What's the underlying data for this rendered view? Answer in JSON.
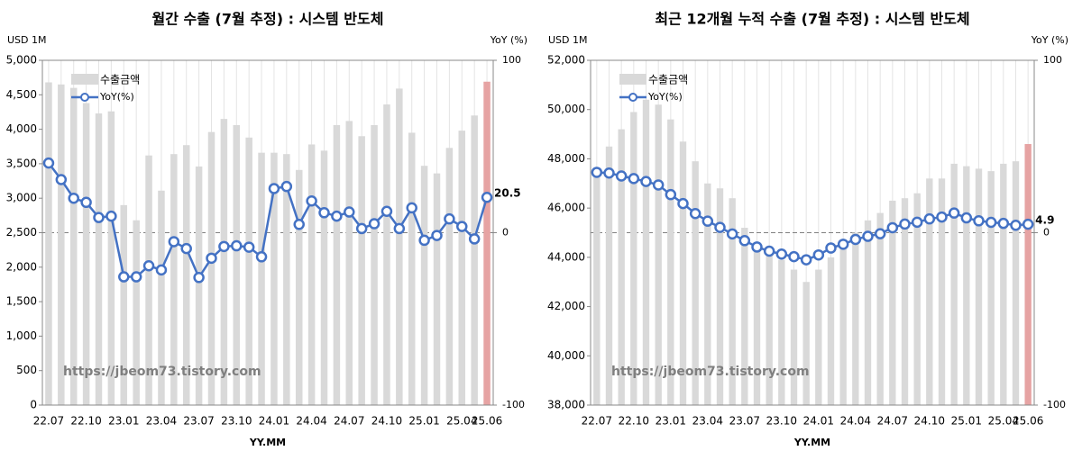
{
  "chart_data": [
    {
      "type": "bar_line",
      "title": "월간 수출 (7월 추정) : 시스템 반도체",
      "ylabel": "USD 1M",
      "y2label": "YoY (%)",
      "xlabel": "YY.MM",
      "watermark": "https://jbeom73.tistory.com",
      "categories": [
        "22.07",
        null,
        null,
        "22.10",
        null,
        null,
        "23.01",
        null,
        null,
        "23.04",
        null,
        null,
        "23.07",
        null,
        null,
        "23.10",
        null,
        null,
        "24.01",
        null,
        null,
        "24.04",
        null,
        null,
        "24.07",
        null,
        null,
        "24.10",
        null,
        null,
        "25.01",
        null,
        null,
        "25.04",
        null,
        "25.06"
      ],
      "series": [
        {
          "name": "수출금액",
          "color": "#d9d9d9",
          "highlight_color": "#e6a3a3",
          "values": [
            4680,
            4650,
            4600,
            4380,
            4230,
            4260,
            2900,
            2680,
            3620,
            3110,
            3640,
            3770,
            3460,
            3960,
            4150,
            4060,
            3880,
            3660,
            3660,
            3640,
            3410,
            3780,
            3690,
            4060,
            4120,
            3900,
            4060,
            4360,
            4590,
            3950,
            3470,
            3360,
            3730,
            3980,
            4200,
            4690
          ]
        },
        {
          "name": "YoY(%)",
          "color": "#4472c4",
          "axis": "y2",
          "values": [
            40.4,
            30.8,
            20,
            17.6,
            8.8,
            9.6,
            -25.6,
            -25.6,
            -19.2,
            -21.6,
            -5.2,
            -9.2,
            -26,
            -14.8,
            -8,
            -7.6,
            -8.4,
            -14,
            25.6,
            26.8,
            4.8,
            18.4,
            11.6,
            9.6,
            12,
            2.4,
            5.2,
            12.4,
            2.4,
            14.4,
            -4.4,
            -1.6,
            8,
            3.6,
            -3.6,
            20.5
          ]
        }
      ],
      "ylim": [
        0,
        5000
      ],
      "yticks": [
        0,
        500,
        {
          "value": 1000,
          "label": "1,000"
        },
        {
          "value": 1500,
          "label": "1,500"
        },
        {
          "value": 2000,
          "label": "2,000"
        },
        {
          "value": 2500,
          "label": "2,500"
        },
        {
          "value": 3000,
          "label": "3,000"
        },
        {
          "value": 3500,
          "label": "3,500"
        },
        {
          "value": 4000,
          "label": "4,000"
        },
        {
          "value": 4500,
          "label": "4,500"
        },
        {
          "value": 5000,
          "label": "5,000"
        }
      ],
      "y2lim": [
        -100,
        100
      ],
      "y2ticks": [
        -100,
        0,
        100
      ],
      "y2_zero_line": true,
      "xgrid": true,
      "label_last_point": true,
      "label_color": "#ff0000"
    },
    {
      "type": "bar_line",
      "title": "최근 12개월 누적 수출 (7월 추정) : 시스템 반도체",
      "ylabel": "USD 1M",
      "y2label": "YoY (%)",
      "xlabel": "YY.MM",
      "watermark": "https://jbeom73.tistory.com",
      "categories": [
        "22.07",
        null,
        null,
        "22.10",
        null,
        null,
        "23.01",
        null,
        null,
        "23.04",
        null,
        null,
        "23.07",
        null,
        null,
        "23.10",
        null,
        null,
        "24.01",
        null,
        null,
        "24.04",
        null,
        null,
        "24.07",
        null,
        null,
        "24.10",
        null,
        null,
        "25.01",
        null,
        null,
        "25.04",
        null,
        "25.06"
      ],
      "series": [
        {
          "name": "수출금액",
          "color": "#d9d9d9",
          "highlight_color": "#e6a3a3",
          "values": [
            47400,
            48500,
            49200,
            49900,
            50400,
            50200,
            49600,
            48700,
            47900,
            47000,
            46800,
            46400,
            45200,
            44600,
            44200,
            43900,
            43500,
            43000,
            43500,
            44000,
            44500,
            45000,
            45500,
            45800,
            46300,
            46400,
            46600,
            47200,
            47200,
            47800,
            47700,
            47600,
            47500,
            47800,
            47900,
            48600
          ]
        },
        {
          "name": "YoY(%)",
          "color": "#4472c4",
          "axis": "y2",
          "values": [
            35,
            34.6,
            32.9,
            31.4,
            29.7,
            27.7,
            22.1,
            16.9,
            11.1,
            6.7,
            3.1,
            -0.7,
            -4.6,
            -8.3,
            -10.7,
            -12.4,
            -13.9,
            -15.7,
            -12.9,
            -8.9,
            -6.7,
            -3.9,
            -2.1,
            -0.6,
            2.9,
            5,
            6.1,
            8,
            9.1,
            11.4,
            8.6,
            6.9,
            6,
            5.4,
            4.3,
            4.9
          ]
        }
      ],
      "ylim": [
        38000,
        52000
      ],
      "yticks": [
        {
          "value": 38000,
          "label": "38,000"
        },
        {
          "value": 40000,
          "label": "40,000"
        },
        {
          "value": 42000,
          "label": "42,000"
        },
        {
          "value": 44000,
          "label": "44,000"
        },
        {
          "value": 46000,
          "label": "46,000"
        },
        {
          "value": 48000,
          "label": "48,000"
        },
        {
          "value": 50000,
          "label": "50,000"
        },
        {
          "value": 52000,
          "label": "52,000"
        }
      ],
      "y2lim": [
        -100,
        100
      ],
      "y2ticks": [
        -100,
        0,
        100
      ],
      "y2_zero_line": true,
      "xgrid": true,
      "label_last_point": true,
      "label_color": "#ff0000"
    }
  ]
}
